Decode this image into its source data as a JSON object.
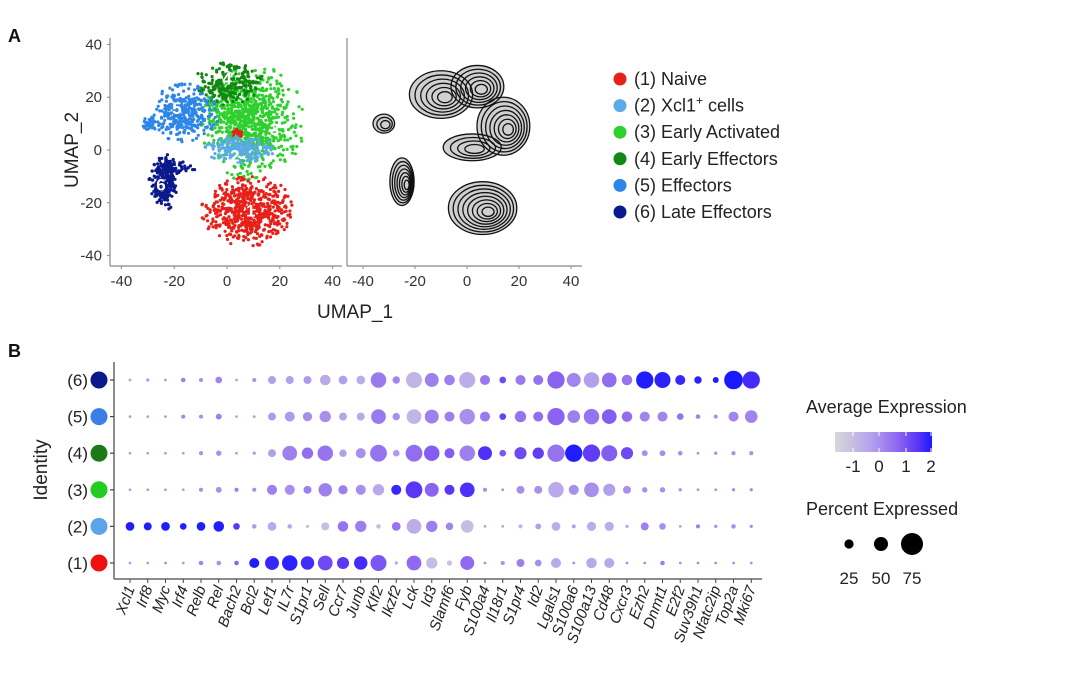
{
  "panels": {
    "a_label": "A",
    "b_label": "B"
  },
  "chart_data": [
    {
      "type": "scatter",
      "panel": "A-left",
      "xlabel": "UMAP_1",
      "ylabel": "UMAP_2",
      "xlim": [
        -40,
        40
      ],
      "ylim": [
        -40,
        40
      ],
      "xticks": [
        "-40",
        "-20",
        "0",
        "20",
        "40"
      ],
      "yticks": [
        "40",
        "20",
        "0",
        "-20",
        "-40"
      ],
      "grid": false,
      "cluster_labels": [
        "1",
        "2",
        "3",
        "4",
        "5",
        "6"
      ],
      "legend": {
        "placement": "right",
        "entries": [
          {
            "id": "1",
            "prefix": "(1) ",
            "name": "Naive",
            "sup": "",
            "suffix": "",
            "color": "#e8201a"
          },
          {
            "id": "2",
            "prefix": "(2) ",
            "name": "Xcl1",
            "sup": "+",
            "suffix": " cells",
            "color": "#5aaae8"
          },
          {
            "id": "3",
            "prefix": "(3) ",
            "name": "Early Activated",
            "sup": "",
            "suffix": "",
            "color": "#2ed02e"
          },
          {
            "id": "4",
            "prefix": "(4) ",
            "name": "Early Effectors",
            "sup": "",
            "suffix": "",
            "color": "#118811"
          },
          {
            "id": "5",
            "prefix": "(5) ",
            "name": "Effectors",
            "sup": "",
            "suffix": "",
            "color": "#2e86e8"
          },
          {
            "id": "6",
            "prefix": "(6) ",
            "name": "Late Effectors",
            "sup": "",
            "suffix": "",
            "color": "#0a1a8c"
          }
        ]
      }
    },
    {
      "type": "contour",
      "panel": "A-right",
      "xlim": [
        -40,
        40
      ],
      "ylim": [
        -40,
        40
      ],
      "xticks": [
        "-40",
        "-20",
        "0",
        "20",
        "40"
      ],
      "grid": false
    },
    {
      "type": "dotplot",
      "panel": "B",
      "ylabel": "Identity",
      "rows": [
        "(1)",
        "(2)",
        "(3)",
        "(4)",
        "(5)",
        "(6)"
      ],
      "row_colors": [
        "#ee1111",
        "#5aa4e8",
        "#22cc22",
        "#1a7a1a",
        "#3a7ee8",
        "#0a1a8c"
      ],
      "genes": [
        "Xcl1",
        "Irf8",
        "Myc",
        "Irf4",
        "Relb",
        "Rel",
        "Bach2",
        "Bcl2",
        "Lef1",
        "IL7r",
        "S1pr1",
        "Sell",
        "Ccr7",
        "Junb",
        "Klf2",
        "Ikzf2",
        "Lck",
        "Id3",
        "Slamf6",
        "Fyb",
        "S100a4",
        "Il18r1",
        "S1pr4",
        "Id2",
        "Lgals1",
        "S100a6",
        "S100a13",
        "Cd48",
        "Cxcr3",
        "Ezh2",
        "Dnmt1",
        "E2f2",
        "Suv39h1",
        "Nfatc2ip",
        "Top2a",
        "Mki67"
      ],
      "percent_expressed": [
        [
          1,
          1,
          1,
          1,
          8,
          8,
          8,
          29,
          44,
          50,
          42,
          47,
          37,
          42,
          52,
          3,
          47,
          34,
          11,
          44,
          1,
          6,
          21,
          16,
          29,
          1,
          31,
          29,
          1,
          1,
          8,
          1,
          1,
          1,
          1,
          1
        ],
        [
          24,
          21,
          24,
          16,
          24,
          31,
          16,
          8,
          24,
          8,
          1,
          21,
          31,
          34,
          8,
          24,
          47,
          34,
          19,
          39,
          1,
          1,
          6,
          13,
          24,
          6,
          26,
          26,
          3,
          21,
          16,
          1,
          6,
          3,
          8,
          3
        ],
        [
          1,
          1,
          1,
          1,
          6,
          13,
          6,
          6,
          29,
          29,
          21,
          42,
          26,
          29,
          34,
          29,
          55,
          44,
          29,
          47,
          6,
          1,
          21,
          21,
          50,
          29,
          47,
          37,
          21,
          11,
          11,
          3,
          1,
          1,
          3,
          3
        ],
        [
          1,
          1,
          1,
          1,
          6,
          11,
          1,
          3,
          21,
          47,
          34,
          50,
          19,
          29,
          55,
          16,
          55,
          50,
          29,
          50,
          44,
          16,
          37,
          34,
          57,
          57,
          57,
          52,
          37,
          13,
          13,
          8,
          1,
          3,
          6,
          6
        ],
        [
          1,
          1,
          1,
          6,
          6,
          13,
          1,
          1,
          21,
          29,
          26,
          34,
          21,
          21,
          47,
          19,
          47,
          44,
          29,
          50,
          29,
          16,
          34,
          29,
          57,
          39,
          50,
          47,
          31,
          29,
          29,
          16,
          8,
          6,
          29,
          39
        ],
        [
          1,
          3,
          1,
          8,
          6,
          16,
          1,
          6,
          21,
          21,
          21,
          31,
          24,
          24,
          50,
          19,
          52,
          44,
          31,
          52,
          29,
          16,
          29,
          29,
          57,
          44,
          50,
          47,
          31,
          57,
          52,
          29,
          19,
          13,
          62,
          57
        ]
      ],
      "average_expression": [
        [
          -0.2,
          -0.2,
          0,
          -0.2,
          0.2,
          0,
          0.8,
          2,
          1.8,
          1.9,
          1.7,
          1.2,
          1.5,
          1.7,
          1,
          -0.5,
          0.7,
          -1,
          -1.2,
          0.7,
          0,
          0,
          0.3,
          0,
          -0.5,
          0,
          -0.5,
          -0.5,
          0,
          0,
          0.3,
          0,
          0,
          0,
          0,
          0
        ],
        [
          2,
          2,
          2,
          2,
          2,
          2,
          1.5,
          -0.2,
          -0.5,
          -0.5,
          -0.5,
          -1,
          0.5,
          0.3,
          -1,
          0.5,
          -0.6,
          0.3,
          0.2,
          -1,
          -0.3,
          -0.3,
          -0.8,
          -0.3,
          -0.6,
          -0.3,
          -0.6,
          -0.6,
          -0.5,
          0.3,
          0,
          -0.3,
          0.3,
          0,
          0,
          0
        ],
        [
          -0.2,
          -0.2,
          -0.2,
          -0.2,
          0,
          0,
          0.3,
          0,
          0.3,
          0,
          0.3,
          0.3,
          0.3,
          0,
          -0.5,
          1.8,
          1.5,
          0.8,
          1.5,
          1.6,
          0,
          0,
          0,
          0,
          -0.5,
          0,
          0,
          -0.3,
          0,
          0,
          0,
          0,
          0,
          0,
          0,
          0
        ],
        [
          -0.2,
          -0.2,
          -0.2,
          -0.2,
          0,
          0,
          -0.2,
          -0.2,
          -0.3,
          0.3,
          0.6,
          0.5,
          -0.3,
          0,
          0.5,
          -0.2,
          0.6,
          0.9,
          0.9,
          0.3,
          1.6,
          1,
          1.2,
          1.4,
          0.5,
          2,
          1.4,
          0.9,
          1.2,
          0,
          0,
          0,
          0,
          0,
          0,
          0
        ],
        [
          -0.2,
          -0.2,
          -0.2,
          0.2,
          0,
          0.3,
          -0.3,
          -0.2,
          -0.2,
          -0.2,
          0,
          0,
          -0.4,
          -0.5,
          0.4,
          0,
          -0.8,
          0.3,
          0.3,
          0,
          0.4,
          1.3,
          0.5,
          0.6,
          0.8,
          0.3,
          0.5,
          0.9,
          0.6,
          0.2,
          0.2,
          0.5,
          0.2,
          0,
          0.2,
          0.2
        ],
        [
          -0.3,
          -0.2,
          -0.2,
          0.3,
          0,
          0.2,
          -0.3,
          0,
          -0.3,
          -0.3,
          -0.2,
          -0.5,
          -0.3,
          -0.6,
          0.4,
          0.2,
          -0.8,
          0.3,
          0.3,
          -0.6,
          0.4,
          1.2,
          0.4,
          0.5,
          0.8,
          0.2,
          -0.3,
          0.6,
          0.5,
          2,
          1.9,
          1.8,
          1.9,
          2,
          2.1,
          1.7
        ]
      ],
      "color_legend": {
        "title": "Average Expression",
        "ticks": [
          "-1",
          "0",
          "1",
          "2"
        ],
        "low_color": "#d3d3d3",
        "high_color": "#1a1aff"
      },
      "size_legend": {
        "title": "Percent Expressed",
        "ticks": [
          "25",
          "50",
          "75"
        ]
      }
    }
  ]
}
